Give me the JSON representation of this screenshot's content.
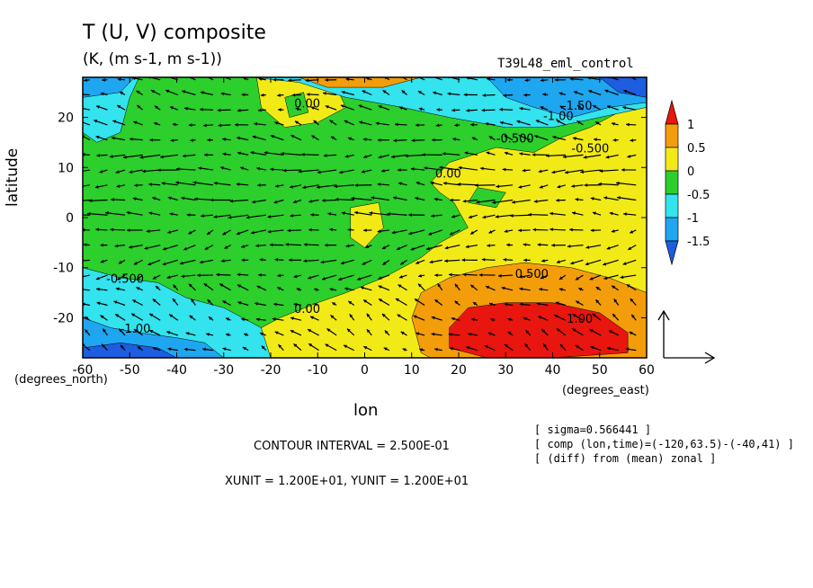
{
  "figure": {
    "title": "T (U, V) composite",
    "subtitle": "(K, (m s-1, m s-1))",
    "run_name": "T39L48_eml_control",
    "ylabel": "latitude",
    "yunit_label": "(degrees_north)",
    "xlabel": "lon",
    "xunit_label": "(degrees_east)",
    "contour_interval": "CONTOUR INTERVAL = 2.500E-01",
    "vector_units": "XUNIT = 1.200E+01, YUNIT = 1.200E+01",
    "info_lines": [
      "[ sigma=0.566441 ]",
      "[ comp (lon,time)=(-120,63.5)-(-40,41) ]",
      "[ (diff) from (mean) zonal ]"
    ]
  },
  "colors": {
    "lt_neg1_5": "#1d5de0",
    "neg1_5_to_neg1": "#1fa6f0",
    "neg1_to_neg0_5": "#33e3ee",
    "neg0_5_to_0": "#2ccf2c",
    "0_to_0_5": "#f2ea17",
    "0_5_to_1": "#f39d0a",
    "gt_1": "#e8160e"
  },
  "chart_data": {
    "type": "heatmap",
    "description_of_field": "filled contours of temperature deviation with wind vector overlay",
    "xlim": [
      -60,
      60
    ],
    "ylim": [
      -28,
      28
    ],
    "x_ticks": [
      -60,
      -50,
      -40,
      -30,
      -20,
      -10,
      0,
      10,
      20,
      30,
      40,
      50,
      60
    ],
    "y_ticks": [
      -20,
      -10,
      0,
      10,
      20
    ],
    "colorbar": {
      "levels": [
        -1.5,
        -1,
        -0.5,
        0,
        0.5,
        1
      ],
      "tick_labels": [
        "1",
        "0.5",
        "0",
        "-0.5",
        "-1",
        "-1.5"
      ]
    },
    "contour_labels": [
      {
        "text": "-0.500",
        "lon": 28,
        "lat": 15
      },
      {
        "text": "-1.00",
        "lon": 38,
        "lat": 19.5
      },
      {
        "text": "-1.50",
        "lon": 42,
        "lat": 21.5
      },
      {
        "text": "-0.500",
        "lon": 44,
        "lat": 13
      },
      {
        "text": "0.00",
        "lon": 15,
        "lat": 8
      },
      {
        "text": "0.00",
        "lon": -15,
        "lat": 22
      },
      {
        "text": "0.500",
        "lon": 32,
        "lat": -12
      },
      {
        "text": "1.00",
        "lon": 43,
        "lat": -21
      },
      {
        "text": "0.00",
        "lon": -15,
        "lat": -19
      },
      {
        "text": "-0.500",
        "lon": -55,
        "lat": -13
      },
      {
        "text": "-1.00",
        "lon": -52,
        "lat": -23
      },
      {
        "text": "-0.500",
        "lon": 10,
        "lat": 28
      }
    ],
    "regions": [
      {
        "level": "neg0_5_to_0",
        "desc": "background",
        "points": [
          [
            -60,
            28
          ],
          [
            60,
            28
          ],
          [
            60,
            -28
          ],
          [
            -60,
            -28
          ]
        ]
      },
      {
        "level": "0_to_0_5",
        "desc": "east yellow",
        "points": [
          [
            60,
            24
          ],
          [
            48,
            18
          ],
          [
            42,
            16
          ],
          [
            36,
            13
          ],
          [
            28,
            14
          ],
          [
            18,
            11
          ],
          [
            14,
            7
          ],
          [
            16,
            5
          ],
          [
            19,
            3
          ],
          [
            22,
            -2
          ],
          [
            16,
            -5
          ],
          [
            12,
            -8
          ],
          [
            4,
            -12
          ],
          [
            -4,
            -15
          ],
          [
            -10,
            -17
          ],
          [
            -18,
            -20
          ],
          [
            -24,
            -23
          ],
          [
            -24,
            -28
          ],
          [
            60,
            -28
          ]
        ]
      },
      {
        "level": "neg0_5_to_0",
        "desc": "green dent in yellow",
        "points": [
          [
            24,
            6
          ],
          [
            30,
            5
          ],
          [
            28,
            2
          ],
          [
            22,
            3
          ]
        ]
      },
      {
        "level": "0_to_0_5",
        "desc": "yellow blob near equator",
        "points": [
          [
            -3,
            2
          ],
          [
            3,
            3
          ],
          [
            4,
            -2
          ],
          [
            0,
            -6
          ],
          [
            -3,
            -4
          ]
        ]
      },
      {
        "level": "0_5_to_1",
        "desc": "orange south-east",
        "points": [
          [
            60,
            -15
          ],
          [
            52,
            -12
          ],
          [
            44,
            -10
          ],
          [
            34,
            -9
          ],
          [
            26,
            -10
          ],
          [
            18,
            -12
          ],
          [
            12,
            -15
          ],
          [
            10,
            -20
          ],
          [
            12,
            -27
          ],
          [
            14,
            -28
          ],
          [
            60,
            -28
          ]
        ]
      },
      {
        "level": "gt_1",
        "desc": "red core",
        "points": [
          [
            22,
            -18
          ],
          [
            30,
            -17
          ],
          [
            40,
            -17
          ],
          [
            50,
            -19
          ],
          [
            56,
            -23
          ],
          [
            56,
            -27
          ],
          [
            40,
            -28
          ],
          [
            26,
            -28
          ],
          [
            18,
            -26
          ],
          [
            18,
            -22
          ]
        ]
      },
      {
        "level": "0_to_0_5",
        "desc": "yellow north-west blob",
        "points": [
          [
            -23,
            28
          ],
          [
            -12,
            28
          ],
          [
            -6,
            26
          ],
          [
            -4,
            22
          ],
          [
            -10,
            19
          ],
          [
            -17,
            18
          ],
          [
            -22,
            22
          ]
        ]
      },
      {
        "level": "neg0_5_to_0",
        "desc": "green island",
        "points": [
          [
            -17,
            24
          ],
          [
            -13,
            25
          ],
          [
            -12,
            21
          ],
          [
            -16,
            20
          ]
        ]
      },
      {
        "level": "neg1_to_neg0_5",
        "desc": "north-west cyan",
        "points": [
          [
            -60,
            28
          ],
          [
            -48,
            28
          ],
          [
            -50,
            24
          ],
          [
            -52,
            17
          ],
          [
            -57,
            15
          ],
          [
            -60,
            17
          ]
        ]
      },
      {
        "level": "neg1_5_to_neg1",
        "desc": "north-west blue",
        "points": [
          [
            -60,
            28
          ],
          [
            -49,
            28
          ],
          [
            -52,
            25
          ],
          [
            -60,
            24
          ]
        ]
      },
      {
        "level": "neg1_to_neg0_5",
        "desc": "north-east cyan",
        "points": [
          [
            -24,
            28
          ],
          [
            60,
            28
          ],
          [
            60,
            22
          ],
          [
            50,
            20
          ],
          [
            40,
            18
          ],
          [
            30,
            18
          ],
          [
            18,
            20
          ],
          [
            8,
            22
          ],
          [
            -4,
            24
          ],
          [
            -14,
            27
          ]
        ]
      },
      {
        "level": "neg1_5_to_neg1",
        "desc": "north-east blue",
        "points": [
          [
            26,
            28
          ],
          [
            60,
            28
          ],
          [
            60,
            23
          ],
          [
            52,
            22
          ],
          [
            44,
            20
          ],
          [
            36,
            22
          ],
          [
            30,
            24
          ]
        ]
      },
      {
        "level": "lt_neg1_5",
        "desc": "north-east dark blue",
        "points": [
          [
            50,
            28
          ],
          [
            60,
            28
          ],
          [
            60,
            24
          ],
          [
            54,
            25
          ]
        ]
      },
      {
        "level": "0_5_to_1",
        "desc": "north orange streak",
        "points": [
          [
            -14,
            28
          ],
          [
            12,
            28
          ],
          [
            4,
            26
          ],
          [
            -8,
            26
          ]
        ]
      },
      {
        "level": "neg1_to_neg0_5",
        "desc": "south-west cyan",
        "points": [
          [
            -60,
            -10
          ],
          [
            -52,
            -12
          ],
          [
            -44,
            -13
          ],
          [
            -38,
            -16
          ],
          [
            -30,
            -18
          ],
          [
            -22,
            -22
          ],
          [
            -20,
            -28
          ],
          [
            -60,
            -28
          ]
        ]
      },
      {
        "level": "neg1_5_to_neg1",
        "desc": "south-west blue",
        "points": [
          [
            -60,
            -20
          ],
          [
            -54,
            -22
          ],
          [
            -48,
            -23
          ],
          [
            -40,
            -24
          ],
          [
            -34,
            -25
          ],
          [
            -30,
            -28
          ],
          [
            -60,
            -28
          ]
        ]
      },
      {
        "level": "lt_neg1_5",
        "desc": "south-west dark blue",
        "points": [
          [
            -60,
            -26
          ],
          [
            -52,
            -25
          ],
          [
            -44,
            -26
          ],
          [
            -40,
            -28
          ],
          [
            -60,
            -28
          ]
        ]
      }
    ],
    "wind_vectors": {
      "grid_step_deg": [
        3.75,
        3.0
      ],
      "pattern": [
        {
          "lat_range": [
            14,
            28
          ],
          "u": -6,
          "v": 1
        },
        {
          "lat_range": [
            -2,
            14
          ],
          "u": -9,
          "v": 0
        },
        {
          "lat_range": [
            -14,
            -2
          ],
          "u": -7,
          "v": -1
        },
        {
          "lat_range": [
            -28,
            -14
          ],
          "u": -5,
          "v": 2
        }
      ]
    },
    "reference_vector": {
      "u": 12,
      "v": 12
    }
  }
}
